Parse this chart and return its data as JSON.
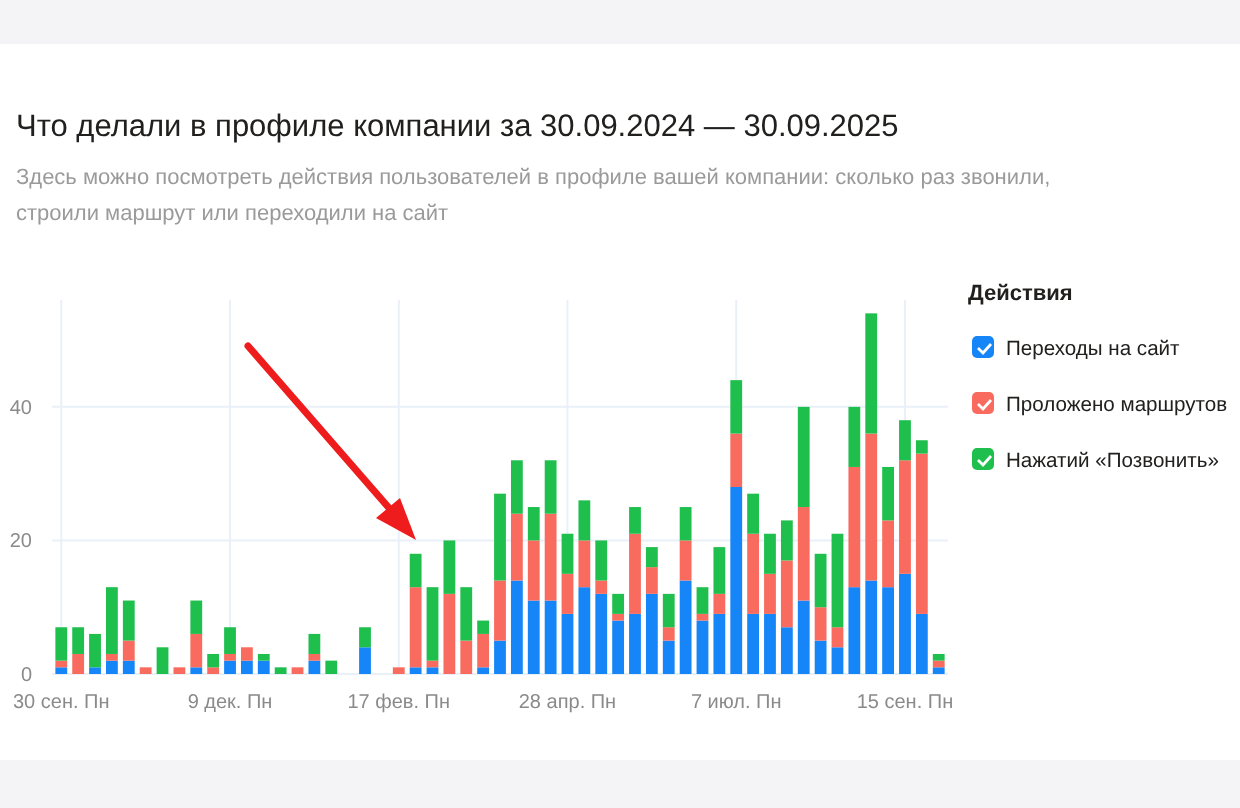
{
  "chart_data": {
    "type": "bar",
    "stacked": true,
    "title": "Что делали в профиле компании за 30.09.2024 — 30.09.2025",
    "subtitle": "Здесь можно посмотреть действия пользователей в профиле вашей компании: сколько раз звонили, строили маршрут или переходили на сайт",
    "legend_title": "Действия",
    "legend": "top right",
    "grid": true,
    "categories": [
      "30 сен. Пн",
      null,
      null,
      null,
      null,
      null,
      null,
      null,
      null,
      null,
      "9 дек. Пн",
      null,
      null,
      null,
      null,
      null,
      null,
      null,
      null,
      null,
      "17 фев. Пн",
      null,
      null,
      null,
      null,
      null,
      null,
      null,
      null,
      null,
      "28 апр. Пн",
      null,
      null,
      null,
      null,
      null,
      null,
      null,
      null,
      null,
      "7 июл. Пн",
      null,
      null,
      null,
      null,
      null,
      null,
      null,
      null,
      null,
      "15 сен. Пн",
      null,
      null
    ],
    "ylim": [
      0,
      56
    ],
    "yticks": [
      0,
      20,
      40
    ],
    "series": [
      {
        "name": "Переходы на сайт",
        "color": "#1685f8",
        "values": [
          1,
          0,
          1,
          2,
          2,
          0,
          0,
          0,
          1,
          0,
          2,
          2,
          2,
          0,
          0,
          2,
          0,
          0,
          4,
          0,
          0,
          1,
          1,
          0,
          0,
          1,
          5,
          14,
          11,
          11,
          9,
          13,
          12,
          8,
          9,
          12,
          5,
          14,
          8,
          9,
          28,
          9,
          9,
          7,
          11,
          5,
          4,
          13,
          14,
          13,
          15,
          9,
          1
        ]
      },
      {
        "name": "Проложено маршрутов",
        "color": "#f86b5e",
        "values": [
          1,
          3,
          0,
          1,
          3,
          1,
          0,
          1,
          5,
          1,
          1,
          2,
          0,
          0,
          1,
          1,
          0,
          0,
          0,
          0,
          1,
          12,
          1,
          12,
          5,
          5,
          9,
          10,
          9,
          13,
          6,
          7,
          2,
          1,
          12,
          4,
          2,
          6,
          1,
          3,
          8,
          12,
          6,
          10,
          14,
          5,
          3,
          18,
          22,
          10,
          17,
          24,
          1
        ]
      },
      {
        "name": "Нажатий «Позвонить»",
        "color": "#1fbf4e",
        "values": [
          5,
          4,
          5,
          10,
          6,
          0,
          4,
          0,
          5,
          2,
          4,
          0,
          1,
          1,
          0,
          3,
          2,
          0,
          3,
          0,
          0,
          5,
          11,
          8,
          8,
          2,
          13,
          8,
          5,
          8,
          6,
          6,
          6,
          3,
          4,
          3,
          5,
          5,
          4,
          7,
          8,
          6,
          6,
          6,
          15,
          8,
          14,
          9,
          18,
          8,
          6,
          2,
          1
        ]
      }
    ]
  }
}
